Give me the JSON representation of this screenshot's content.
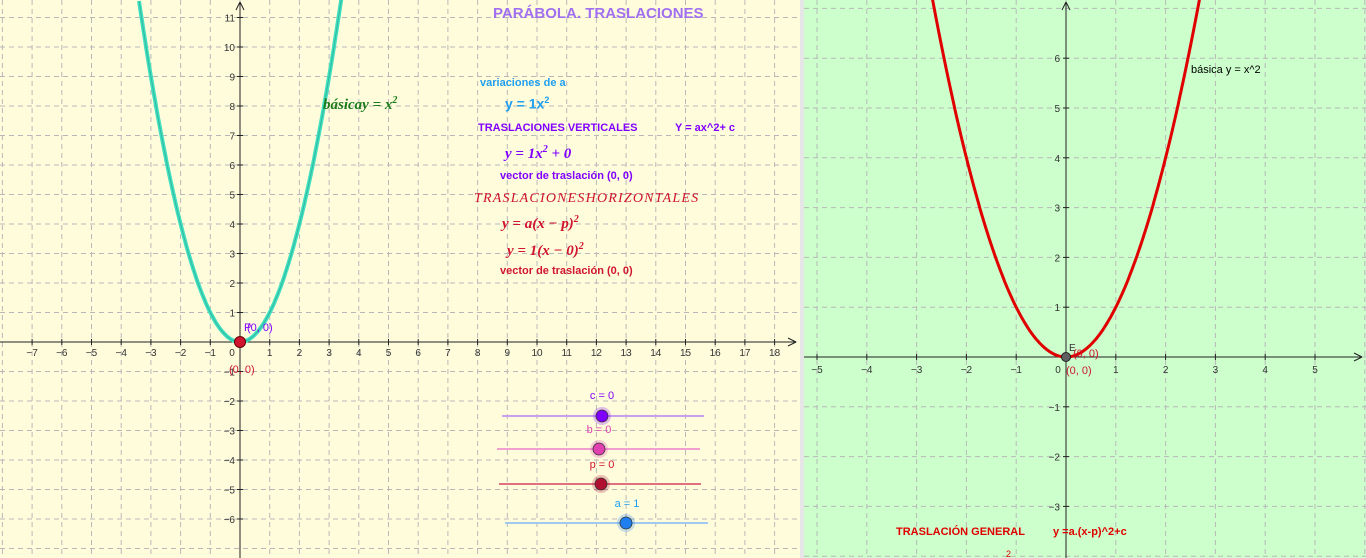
{
  "colors": {
    "left_bg": "#fffcdc",
    "right_bg": "#ccffcc",
    "title": "#a070f0",
    "cyan_curve": "#40e0c0",
    "red_curve": "#e00000",
    "violet": "#8000ff",
    "blue": "#1f9fef",
    "crimson": "#d01530",
    "green_text": "#1a7a1a",
    "pink": "#e040b0"
  },
  "left": {
    "title": "PARÁBOLA. TRASLACIONES",
    "basica_label": "básicay = x",
    "basica_exp": "2",
    "variaciones_label": "variaciones de a",
    "variaciones_formula": "y = 1x",
    "variaciones_exp": "2",
    "trasl_verticales_label": "TRASLACIONES VERTICALES",
    "trasl_verticales_formula_text": "Y = ax^2+ c",
    "vertical_formula": "y = 1x",
    "vertical_formula_exp": "2",
    "vertical_formula_tail": " + 0",
    "vector_vertical": "vector de traslación  (0, 0)",
    "trasl_horizontales_title": "TRASLACIONESHORIZONTALES",
    "horizontal_general": "y = a(x − p)",
    "horizontal_general_exp": "2",
    "horizontal_current": "y = 1(x − 0)",
    "horizontal_current_exp": "2",
    "vector_horizontal": "vector de traslación (0, 0)",
    "point_label_top": "(0, 0)",
    "point_letter": "P",
    "point_label_bottom": "(0, 0)",
    "x_ticks": [
      "−7",
      "−6",
      "−5",
      "−4",
      "−3",
      "−2",
      "−1",
      "0",
      "1",
      "2",
      "3",
      "4",
      "5",
      "6",
      "7",
      "8",
      "9",
      "10",
      "11",
      "12",
      "13",
      "14",
      "15",
      "16",
      "17",
      "18"
    ],
    "y_ticks": [
      "11",
      "10",
      "9",
      "8",
      "7",
      "6",
      "5",
      "4",
      "3",
      "2",
      "1",
      "−1",
      "−2",
      "−3",
      "−4",
      "−5",
      "−6"
    ],
    "sliders": [
      {
        "label": "c = 0",
        "value": 0
      },
      {
        "label": "b = 0",
        "value": 0
      },
      {
        "label": "p = 0",
        "value": 0
      },
      {
        "label": "a = 1",
        "value": 1
      }
    ]
  },
  "right": {
    "basica_label": "básica  y = x^2",
    "vertex_letter": "E",
    "vertex_label_top": "(0, 0)",
    "vertex_label_bottom": "(0, 0)",
    "general_label": "TRASLACIÓN GENERAL",
    "general_formula": "y =a.(x-p)^2+c",
    "cut_fragment": "2",
    "x_ticks": [
      "−5",
      "−4",
      "−3",
      "−2",
      "−1",
      "0",
      "1",
      "2",
      "3",
      "4",
      "5"
    ],
    "y_ticks": [
      "6",
      "5",
      "4",
      "3",
      "2",
      "1",
      "−1",
      "−2",
      "−3"
    ]
  }
}
